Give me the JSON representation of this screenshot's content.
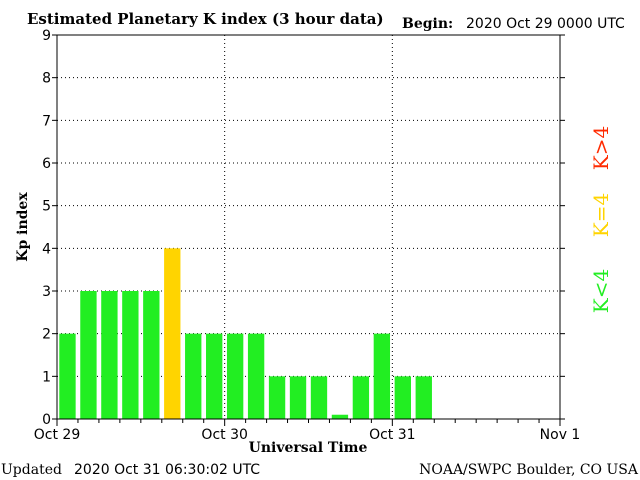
{
  "header": {
    "title": "Estimated Planetary K index (3 hour data)",
    "begin_label": "Begin:",
    "begin_value": "2020 Oct 29 0000 UTC"
  },
  "footer": {
    "updated_label": "Updated",
    "updated_value": "2020 Oct 31 06:30:02 UTC",
    "source": "NOAA/SWPC Boulder, CO USA"
  },
  "legend": [
    {
      "label": "K>4",
      "color": "#ff2a00"
    },
    {
      "label": "K=4",
      "color": "#ffd400"
    },
    {
      "label": "K<4",
      "color": "#22ee22"
    }
  ],
  "chart_data": {
    "type": "bar",
    "title": "Estimated Planetary K index (3 hour data)",
    "xlabel": "Universal Time",
    "ylabel": "Kp index",
    "ylim": [
      0,
      9
    ],
    "yticks": [
      0,
      1,
      2,
      3,
      4,
      5,
      6,
      7,
      8,
      9
    ],
    "xlim_hours": [
      0,
      72
    ],
    "xtick_labels": [
      "Oct 29",
      "Oct 30",
      "Oct 31",
      "Nov 1"
    ],
    "grid": true,
    "interval_hours": 3,
    "colors": {
      "below": "#22ee22",
      "equal": "#ffd400",
      "above": "#ff2a00"
    },
    "values": [
      2,
      3,
      3,
      3,
      3,
      4,
      2,
      2,
      2,
      2,
      1,
      1,
      1,
      0.1,
      1,
      2,
      1,
      1
    ]
  }
}
